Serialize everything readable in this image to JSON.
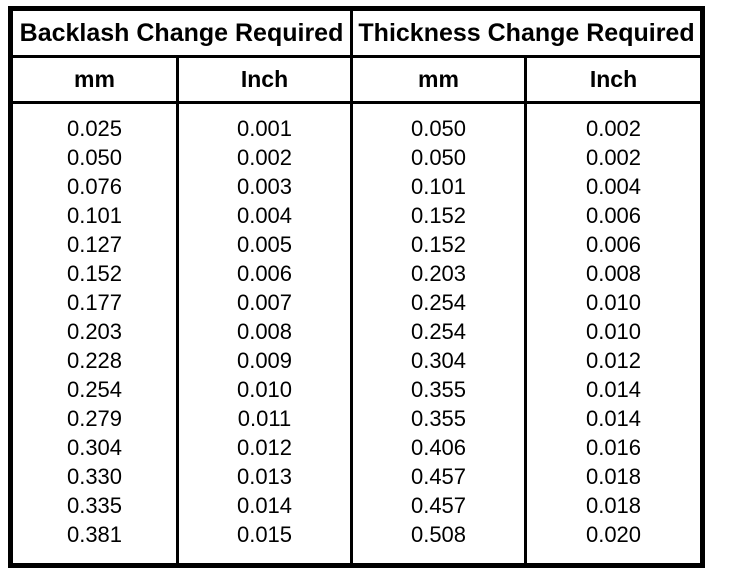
{
  "table": {
    "header_groups": [
      {
        "label": "Backlash Change Required"
      },
      {
        "label": "Thickness Change Required"
      }
    ],
    "columns": [
      "mm",
      "Inch",
      "mm",
      "Inch"
    ],
    "rows": [
      [
        "0.025",
        "0.001",
        "0.050",
        "0.002"
      ],
      [
        "0.050",
        "0.002",
        "0.050",
        "0.002"
      ],
      [
        "0.076",
        "0.003",
        "0.101",
        "0.004"
      ],
      [
        "0.101",
        "0.004",
        "0.152",
        "0.006"
      ],
      [
        "0.127",
        "0.005",
        "0.152",
        "0.006"
      ],
      [
        "0.152",
        "0.006",
        "0.203",
        "0.008"
      ],
      [
        "0.177",
        "0.007",
        "0.254",
        "0.010"
      ],
      [
        "0.203",
        "0.008",
        "0.254",
        "0.010"
      ],
      [
        "0.228",
        "0.009",
        "0.304",
        "0.012"
      ],
      [
        "0.254",
        "0.010",
        "0.355",
        "0.014"
      ],
      [
        "0.279",
        "0.011",
        "0.355",
        "0.014"
      ],
      [
        "0.304",
        "0.012",
        "0.406",
        "0.016"
      ],
      [
        "0.330",
        "0.013",
        "0.457",
        "0.018"
      ],
      [
        "0.335",
        "0.014",
        "0.457",
        "0.018"
      ],
      [
        "0.381",
        "0.015",
        "0.508",
        "0.020"
      ]
    ],
    "colors": {
      "border": "#000000",
      "text": "#000000",
      "background": "#ffffff"
    }
  },
  "chart_data": {
    "type": "table",
    "title": "",
    "column_groups": [
      "Backlash Change Required",
      "Thickness Change Required"
    ],
    "columns": [
      "Backlash mm",
      "Backlash Inch",
      "Thickness mm",
      "Thickness Inch"
    ],
    "rows": [
      [
        0.025,
        0.001,
        0.05,
        0.002
      ],
      [
        0.05,
        0.002,
        0.05,
        0.002
      ],
      [
        0.076,
        0.003,
        0.101,
        0.004
      ],
      [
        0.101,
        0.004,
        0.152,
        0.006
      ],
      [
        0.127,
        0.005,
        0.152,
        0.006
      ],
      [
        0.152,
        0.006,
        0.203,
        0.008
      ],
      [
        0.177,
        0.007,
        0.254,
        0.01
      ],
      [
        0.203,
        0.008,
        0.254,
        0.01
      ],
      [
        0.228,
        0.009,
        0.304,
        0.012
      ],
      [
        0.254,
        0.01,
        0.355,
        0.014
      ],
      [
        0.279,
        0.011,
        0.355,
        0.014
      ],
      [
        0.304,
        0.012,
        0.406,
        0.016
      ],
      [
        0.33,
        0.013,
        0.457,
        0.018
      ],
      [
        0.335,
        0.014,
        0.457,
        0.018
      ],
      [
        0.381,
        0.015,
        0.508,
        0.02
      ]
    ]
  }
}
